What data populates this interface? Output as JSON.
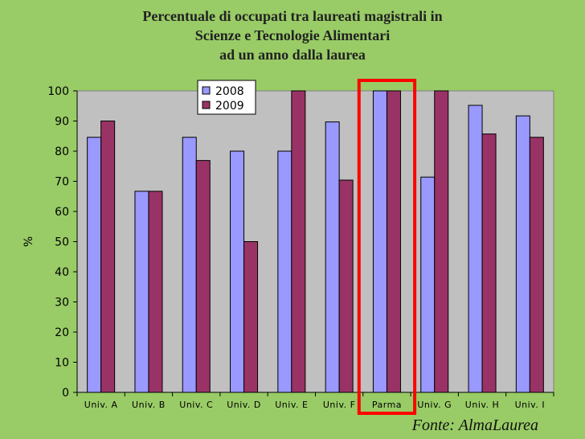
{
  "title_lines": [
    "Percentuale di occupati tra laureati magistrali in",
    "Scienze e Tecnologie Alimentari",
    "ad un anno dalla laurea"
  ],
  "source": "Fonte: AlmaLaurea",
  "colors": {
    "background": "#99cc66",
    "plot_area": "#c0c0c0",
    "series_2008": "#9999ff",
    "series_2009": "#993366",
    "highlight": "#ff0000"
  },
  "chart_data": {
    "type": "bar",
    "title": "Percentuale di occupati tra laureati magistrali in Scienze e Tecnologie Alimentari ad un anno dalla laurea",
    "xlabel": "",
    "ylabel": "%",
    "ylim": [
      0,
      100
    ],
    "yticks": [
      0,
      10,
      20,
      30,
      40,
      50,
      60,
      70,
      80,
      90,
      100
    ],
    "categories": [
      "Univ. A",
      "Univ. B",
      "Univ. C",
      "Univ. D",
      "Univ. E",
      "Univ. F",
      "Parma",
      "Univ. G",
      "Univ. H",
      "Univ. I"
    ],
    "series": [
      {
        "name": "2008",
        "values": [
          84.6,
          66.7,
          84.6,
          80.0,
          80.0,
          89.7,
          100.0,
          71.4,
          95.2,
          91.7
        ]
      },
      {
        "name": "2009",
        "values": [
          90.0,
          66.7,
          76.9,
          50.0,
          100.0,
          70.4,
          100.0,
          100.0,
          85.7,
          84.6
        ]
      }
    ],
    "grid": false,
    "legend_placement": "top-center",
    "highlighted_category": "Parma"
  }
}
